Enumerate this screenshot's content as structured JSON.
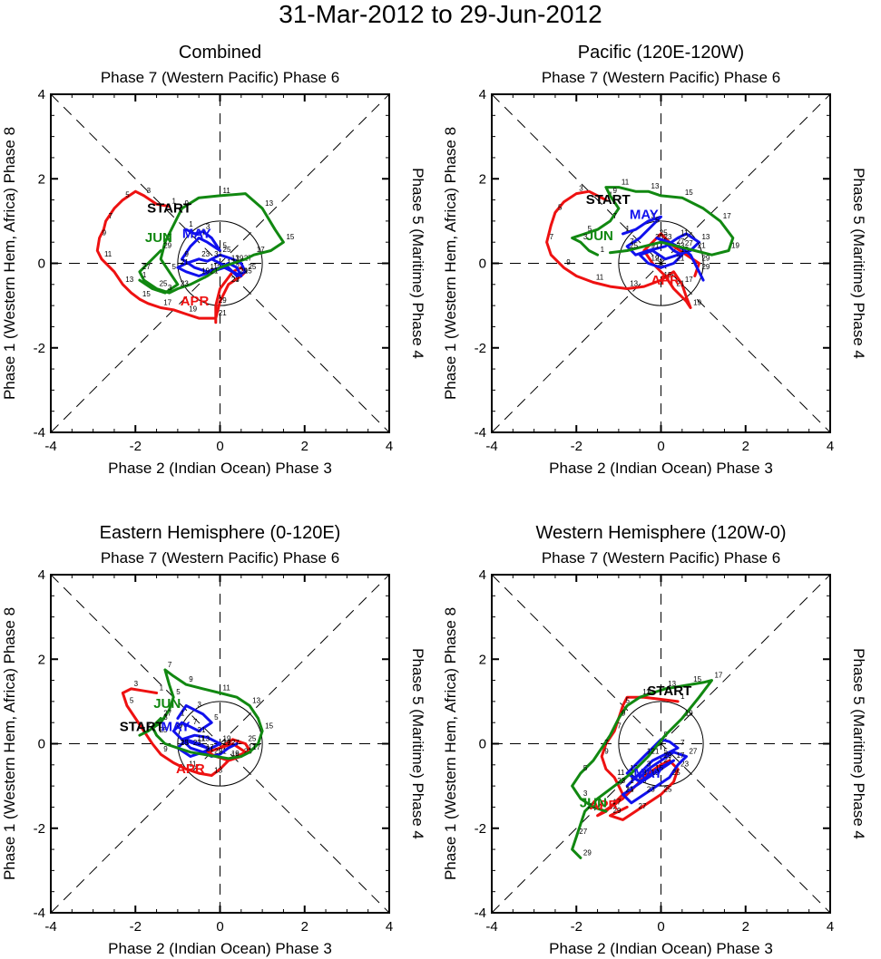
{
  "page_title": "31-Mar-2012 to 29-Jun-2012",
  "colors": {
    "april": "#ee1111",
    "may": "#1111ee",
    "june": "#118811",
    "axes": "#000000"
  },
  "chart_data": [
    {
      "type": "line",
      "id": "combined",
      "title": "Combined",
      "top_label": "Phase 7 (Western Pacific) Phase 6",
      "bottom_label": "Phase 2 (Indian Ocean) Phase 3",
      "left_label": "Phase 1 (Western Hem, Africa) Phase 8",
      "right_label": "Phase 5 (Maritime) Phase 4",
      "xlim": [
        -4,
        4
      ],
      "ylim": [
        -4,
        4
      ],
      "xticks": [
        -4,
        -2,
        0,
        2,
        4
      ],
      "yticks": [
        -4,
        -2,
        0,
        2,
        4
      ],
      "unit_circle_radius": 1,
      "month_labels": [
        {
          "text": "START",
          "x": -1.2,
          "y": 1.2,
          "color": "#000000"
        },
        {
          "text": "APR",
          "x": -0.6,
          "y": -1.0,
          "color": "#ee1111"
        },
        {
          "text": "MAY",
          "x": -0.55,
          "y": 0.6,
          "color": "#1111ee"
        },
        {
          "text": "JUN",
          "x": -1.45,
          "y": 0.5,
          "color": "#118811"
        }
      ],
      "series": [
        {
          "name": "Apr",
          "color": "#ee1111",
          "x": [
            -1.2,
            -1.5,
            -1.8,
            -2.0,
            -2.3,
            -2.5,
            -2.7,
            -2.75,
            -2.85,
            -2.9,
            -2.8,
            -2.5,
            -2.3,
            -2.1,
            -1.9,
            -1.7,
            -1.4,
            -1.1,
            -0.8,
            -0.5,
            -0.1,
            0.0,
            0.2,
            0.5,
            0.6,
            0.5,
            0.3,
            0.0,
            -0.1,
            -0.1
          ],
          "y": [
            1.35,
            1.4,
            1.6,
            1.7,
            1.5,
            1.3,
            1.0,
            0.8,
            0.6,
            0.3,
            0.1,
            -0.2,
            -0.5,
            -0.7,
            -0.85,
            -0.95,
            -1.05,
            -1.1,
            -1.2,
            -1.3,
            -1.3,
            -0.9,
            -0.5,
            -0.3,
            -0.2,
            -0.1,
            -0.2,
            -0.6,
            -1.0,
            -1.4
          ]
        },
        {
          "name": "May",
          "color": "#1111ee",
          "x": [
            -0.8,
            -0.6,
            -0.4,
            -0.2,
            0.0,
            -0.3,
            -0.5,
            -0.7,
            -0.9,
            -0.6,
            -0.3,
            0.0,
            0.2,
            0.4,
            0.5,
            0.3,
            0.1,
            -0.2,
            -0.5,
            -0.8,
            -1.0,
            -0.8,
            -0.5,
            -0.3,
            0.0,
            0.3,
            0.5,
            0.6,
            0.4,
            0.2,
            -0.2
          ],
          "y": [
            0.8,
            0.7,
            0.75,
            0.6,
            0.3,
            0.5,
            0.6,
            0.4,
            0.1,
            -0.1,
            -0.2,
            -0.1,
            0.0,
            -0.1,
            -0.3,
            -0.2,
            -0.1,
            -0.2,
            -0.3,
            -0.2,
            -0.1,
            0.0,
            0.1,
            0.05,
            0.2,
            0.1,
            0.0,
            -0.2,
            -0.3,
            -0.1,
            0.1
          ]
        },
        {
          "name": "Jun",
          "color": "#118811",
          "x": [
            -1.9,
            -1.6,
            -1.3,
            -1.0,
            -1.2,
            -1.4,
            -1.3,
            -1.1,
            -0.9,
            -0.5,
            0.0,
            0.6,
            1.0,
            1.3,
            1.5,
            1.2,
            0.8,
            0.6,
            0.3,
            0.0,
            -0.3,
            -0.7,
            -1.0,
            -1.2,
            -1.5,
            -1.8,
            -1.9,
            -1.7,
            -1.4
          ],
          "y": [
            -0.4,
            -0.6,
            -0.7,
            -0.5,
            -0.2,
            0.1,
            0.5,
            0.9,
            1.3,
            1.55,
            1.6,
            1.65,
            1.3,
            0.8,
            0.5,
            0.3,
            0.2,
            0.1,
            0.0,
            -0.1,
            -0.3,
            -0.5,
            -0.6,
            -0.7,
            -0.6,
            -0.4,
            -0.2,
            0.0,
            0.3
          ]
        }
      ]
    },
    {
      "type": "line",
      "id": "pacific",
      "title": "Pacific (120E-120W)",
      "top_label": "Phase 7 (Western Pacific) Phase 6",
      "bottom_label": "Phase 2 (Indian Ocean) Phase 3",
      "left_label": "Phase 1 (Western Hem, Africa) Phase 8",
      "right_label": "Phase 5 (Maritime) Phase 4",
      "xlim": [
        -4,
        4
      ],
      "ylim": [
        -4,
        4
      ],
      "xticks": [
        -4,
        -2,
        0,
        2,
        4
      ],
      "yticks": [
        -4,
        -2,
        0,
        2,
        4
      ],
      "unit_circle_radius": 1,
      "month_labels": [
        {
          "text": "START",
          "x": -1.25,
          "y": 1.4,
          "color": "#000000"
        },
        {
          "text": "APR",
          "x": 0.1,
          "y": -0.5,
          "color": "#ee1111"
        },
        {
          "text": "MAY",
          "x": -0.4,
          "y": 1.05,
          "color": "#1111ee"
        },
        {
          "text": "JUN",
          "x": -1.45,
          "y": 0.55,
          "color": "#118811"
        }
      ],
      "series": [
        {
          "name": "Apr",
          "color": "#ee1111",
          "x": [
            -1.3,
            -1.7,
            -2.0,
            -2.3,
            -2.5,
            -2.6,
            -2.7,
            -2.6,
            -2.3,
            -2.0,
            -1.6,
            -1.2,
            -0.8,
            -0.4,
            0.0,
            0.3,
            0.5,
            0.6,
            0.7,
            0.6,
            0.3,
            0.1,
            -0.2,
            -0.4,
            -0.2,
            0.0,
            0.3,
            0.6,
            0.9,
            0.8
          ],
          "y": [
            1.5,
            1.7,
            1.65,
            1.45,
            1.2,
            0.9,
            0.5,
            0.2,
            -0.1,
            -0.3,
            -0.45,
            -0.55,
            -0.6,
            -0.55,
            -0.4,
            -0.2,
            -0.5,
            -0.8,
            -1.05,
            -0.9,
            -0.6,
            -0.3,
            0.0,
            0.3,
            0.5,
            0.7,
            0.4,
            0.2,
            0.0,
            -0.3
          ]
        },
        {
          "name": "May",
          "color": "#1111ee",
          "x": [
            -0.9,
            -0.6,
            -0.3,
            0.0,
            -0.2,
            -0.5,
            -0.8,
            -0.6,
            -0.3,
            0.1,
            0.4,
            0.6,
            0.9,
            0.7,
            0.4,
            0.1,
            -0.2,
            -0.5,
            -0.3,
            0.0,
            0.3,
            0.5,
            0.3,
            0.1,
            -0.1,
            0.2,
            0.5,
            0.7,
            0.9,
            1.0
          ],
          "y": [
            0.7,
            0.8,
            1.0,
            1.1,
            0.9,
            0.6,
            0.4,
            0.2,
            0.3,
            0.4,
            0.6,
            0.7,
            0.5,
            0.3,
            0.2,
            0.1,
            0.3,
            0.2,
            0.0,
            -0.1,
            0.0,
            0.2,
            0.3,
            0.5,
            0.6,
            0.5,
            0.35,
            0.2,
            -0.2,
            -0.4
          ]
        },
        {
          "name": "Jun",
          "color": "#118811",
          "x": [
            -1.5,
            -1.7,
            -1.9,
            -2.1,
            -1.8,
            -1.5,
            -1.2,
            -1.0,
            -1.2,
            -1.3,
            -1.0,
            -0.6,
            -0.3,
            0.0,
            0.5,
            1.0,
            1.4,
            1.7,
            1.6,
            1.2,
            0.8,
            0.4,
            0.0,
            -0.4,
            -0.8,
            -1.2
          ],
          "y": [
            0.2,
            0.3,
            0.5,
            0.6,
            0.7,
            0.8,
            1.0,
            1.3,
            1.6,
            1.8,
            1.8,
            1.7,
            1.7,
            1.6,
            1.55,
            1.3,
            1.0,
            0.6,
            0.3,
            0.2,
            0.3,
            0.4,
            0.5,
            0.4,
            0.3,
            0.25
          ]
        }
      ]
    },
    {
      "type": "line",
      "id": "eastern",
      "title": "Eastern Hemisphere (0-120E)",
      "top_label": "Phase 7 (Western Pacific) Phase 6",
      "bottom_label": "Phase 2 (Indian Ocean) Phase 3",
      "left_label": "Phase 1 (Western Hem, Africa) Phase 8",
      "right_label": "Phase 5 (Maritime) Phase 4",
      "xlim": [
        -4,
        4
      ],
      "ylim": [
        -4,
        4
      ],
      "xticks": [
        -4,
        -2,
        0,
        2,
        4
      ],
      "yticks": [
        -4,
        -2,
        0,
        2,
        4
      ],
      "unit_circle_radius": 1,
      "month_labels": [
        {
          "text": "START",
          "x": -1.85,
          "y": 0.3,
          "color": "#000000"
        },
        {
          "text": "APR",
          "x": -0.7,
          "y": -0.7,
          "color": "#ee1111"
        },
        {
          "text": "MAY",
          "x": -1.05,
          "y": 0.3,
          "color": "#1111ee"
        },
        {
          "text": "JUN",
          "x": -1.25,
          "y": 0.85,
          "color": "#118811"
        }
      ],
      "series": [
        {
          "name": "Apr",
          "color": "#ee1111",
          "x": [
            -1.5,
            -1.8,
            -2.1,
            -2.3,
            -2.2,
            -2.0,
            -1.8,
            -1.6,
            -1.4,
            -1.1,
            -0.8,
            -0.5,
            -0.2,
            0.0,
            0.2,
            0.4,
            0.6,
            0.3,
            0.0,
            -0.3,
            -0.1,
            0.2,
            0.5,
            0.7,
            0.6,
            0.3,
            0.0
          ],
          "y": [
            1.2,
            1.25,
            1.3,
            1.2,
            0.9,
            0.6,
            0.3,
            0.0,
            -0.25,
            -0.45,
            -0.6,
            -0.7,
            -0.75,
            -0.6,
            -0.4,
            -0.3,
            -0.2,
            0.0,
            -0.1,
            -0.2,
            -0.3,
            -0.4,
            -0.3,
            -0.15,
            0.0,
            0.1,
            -0.1
          ]
        },
        {
          "name": "May",
          "color": "#1111ee",
          "x": [
            -1.0,
            -0.8,
            -0.6,
            -0.4,
            -0.2,
            -0.5,
            -0.7,
            -0.9,
            -1.1,
            -0.9,
            -0.6,
            -0.3,
            -0.5,
            -0.8,
            -1.0,
            -0.7,
            -0.4,
            -0.2,
            0.0,
            -0.3,
            -0.6,
            -0.9,
            -0.7,
            -0.4,
            -0.2,
            0.0,
            0.2,
            0.4
          ],
          "y": [
            0.6,
            0.9,
            0.8,
            0.7,
            0.5,
            0.3,
            0.4,
            0.5,
            0.3,
            0.1,
            0.0,
            -0.1,
            0.0,
            0.1,
            -0.1,
            -0.3,
            -0.2,
            -0.1,
            0.0,
            0.15,
            0.2,
            0.1,
            -0.1,
            -0.2,
            -0.3,
            -0.25,
            -0.1,
            0.0
          ]
        },
        {
          "name": "Jun",
          "color": "#118811",
          "x": [
            -1.9,
            -1.7,
            -1.4,
            -1.2,
            -1.1,
            -1.2,
            -1.3,
            -1.1,
            -0.8,
            -0.4,
            0.0,
            0.4,
            0.7,
            0.9,
            1.0,
            0.9,
            0.7,
            0.5,
            0.2,
            -0.1,
            -0.4,
            -0.7,
            -1.0,
            -1.3,
            -1.5,
            -1.6,
            -1.4
          ],
          "y": [
            0.2,
            0.3,
            0.5,
            0.8,
            1.1,
            1.4,
            1.75,
            1.6,
            1.4,
            1.3,
            1.2,
            1.1,
            0.9,
            0.6,
            0.3,
            0.0,
            -0.2,
            -0.3,
            -0.35,
            -0.3,
            -0.25,
            -0.2,
            -0.1,
            0.0,
            0.2,
            0.4,
            0.6
          ]
        }
      ]
    },
    {
      "type": "line",
      "id": "western",
      "title": "Western Hemisphere (120W-0)",
      "top_label": "Phase 7 (Western Pacific) Phase 6",
      "bottom_label": "Phase 2 (Indian Ocean) Phase 3",
      "left_label": "Phase 1 (Western Hem, Africa) Phase 8",
      "right_label": "Phase 5 (Maritime) Phase 4",
      "xlim": [
        -4,
        4
      ],
      "ylim": [
        -4,
        4
      ],
      "xticks": [
        -4,
        -2,
        0,
        2,
        4
      ],
      "yticks": [
        -4,
        -2,
        0,
        2,
        4
      ],
      "unit_circle_radius": 1,
      "month_labels": [
        {
          "text": "START",
          "x": 0.2,
          "y": 1.15,
          "color": "#000000"
        },
        {
          "text": "APR",
          "x": -1.35,
          "y": -1.55,
          "color": "#ee1111"
        },
        {
          "text": "MAY",
          "x": -0.3,
          "y": -0.8,
          "color": "#1111ee"
        },
        {
          "text": "JUN",
          "x": -1.6,
          "y": -1.5,
          "color": "#118811"
        }
      ],
      "series": [
        {
          "name": "Apr",
          "color": "#ee1111",
          "x": [
            0.4,
            0.0,
            -0.4,
            -0.8,
            -0.9,
            -1.0,
            -1.1,
            -1.3,
            -1.4,
            -1.3,
            -1.1,
            -1.0,
            -0.9,
            -1.1,
            -1.3,
            -1.5,
            -1.2,
            -0.9,
            -0.6,
            -0.3,
            0.0,
            0.2,
            0.4,
            0.3,
            0.0,
            -0.3,
            -0.6,
            -0.9,
            -1.2,
            -0.8
          ],
          "y": [
            1.0,
            1.05,
            1.1,
            1.1,
            0.9,
            0.6,
            0.3,
            0.0,
            -0.3,
            -0.6,
            -0.8,
            -1.0,
            -1.2,
            -1.4,
            -1.6,
            -1.7,
            -1.5,
            -1.3,
            -1.0,
            -0.7,
            -0.5,
            -0.4,
            -0.6,
            -0.9,
            -1.2,
            -1.4,
            -1.6,
            -1.8,
            -1.7,
            -1.5
          ]
        },
        {
          "name": "May",
          "color": "#1111ee",
          "x": [
            -0.8,
            -0.6,
            -0.4,
            -0.2,
            0.0,
            0.2,
            0.4,
            0.2,
            0.0,
            -0.2,
            -0.4,
            -0.6,
            -0.8,
            -0.5,
            -0.2,
            0.1,
            0.3,
            0.0,
            -0.3,
            -0.6,
            -0.9,
            -0.7,
            -0.4,
            -0.1,
            0.2,
            0.4,
            0.6,
            0.3,
            0.0,
            -0.3,
            -0.5
          ],
          "y": [
            -1.0,
            -0.8,
            -0.6,
            -0.4,
            -0.3,
            -0.2,
            -0.1,
            0.05,
            0.1,
            -0.1,
            -0.3,
            -0.5,
            -0.7,
            -0.9,
            -0.7,
            -0.5,
            -0.4,
            -0.6,
            -0.8,
            -1.0,
            -1.2,
            -1.4,
            -1.2,
            -1.0,
            -0.8,
            -0.5,
            -0.3,
            -0.2,
            -0.4,
            -0.6,
            -0.8
          ]
        },
        {
          "name": "Jun",
          "color": "#118811",
          "x": [
            -1.3,
            -1.6,
            -1.9,
            -2.1,
            -1.9,
            -1.6,
            -1.4,
            -1.2,
            -1.0,
            -0.8,
            -0.5,
            -0.2,
            0.1,
            0.4,
            0.7,
            1.0,
            1.2,
            0.9,
            0.5,
            0.1,
            -0.3,
            -0.7,
            -1.1,
            -1.5,
            -1.8,
            -1.9,
            -2.0,
            -2.1,
            -1.9
          ],
          "y": [
            -1.6,
            -1.5,
            -1.3,
            -1.0,
            -0.7,
            -0.4,
            -0.1,
            0.2,
            0.6,
            0.9,
            1.1,
            1.2,
            1.3,
            1.35,
            1.4,
            1.45,
            1.5,
            1.1,
            0.6,
            0.2,
            -0.3,
            -0.7,
            -1.0,
            -1.3,
            -1.6,
            -1.9,
            -2.2,
            -2.5,
            -2.7
          ]
        }
      ]
    }
  ]
}
